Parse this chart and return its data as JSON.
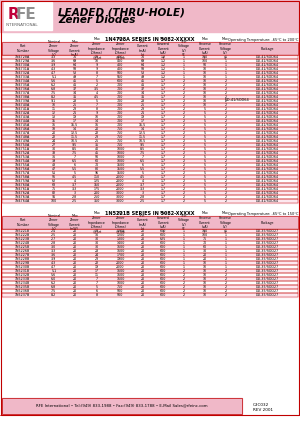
{
  "title_line1": "LEADED (THRU-HOLE)",
  "title_line2": "Zener Diodes",
  "bg_color": "#ffffff",
  "header_bg": "#f0b8c8",
  "table_header_bg": "#f0b8c8",
  "row_alt_bg": "#fde8ef",
  "row_normal_bg": "#ffffff",
  "border_color": "#c00000",
  "text_color": "#000000",
  "logo_r_color": "#c0003a",
  "logo_fe_color": "#909090",
  "footer_bg": "#f0b8c8",
  "footer_text": "RFE International • Tel:(949) 833-1988 • Fax:(949) 833-1788 • E-Mail Sales@rfeinc.com",
  "footer_code": "C3C032\nREV 2001",
  "watermark_text": "ЭЛЕКТРОННЫЙ  ПОРТАЛ",
  "table1_title": "1N4728A SERIES IN 5082-XXXXX",
  "table1_op_temp": "Operating Temperature: -65°C to 200°C",
  "table1_headers": [
    "Part Number",
    "Nominal\nZener\nVoltage\n(V)",
    "Max\nZener\nCurrent\n(mA)",
    "Max\nZener\nImpedance\n(Ohms)",
    "Max\nZener\nImpedance\n(Ohms)",
    "Test\nCurrent\n(mA)",
    "Max\nForward\nCurrent\n(mA)",
    "Test\nVoltage\n(V)",
    "Max\nReverse\nCurrent\n(uA)",
    "Max\nReverse\nVoltage\n(V)",
    "Package"
  ],
  "table1_rows": [
    [
      "1N4728A",
      "3.3",
      "76",
      "10",
      "400",
      "76",
      "1.2",
      "1",
      "100",
      "1",
      "DO-41/SOD64"
    ],
    [
      "1N4729A",
      "3.6",
      "69",
      "10",
      "400",
      "69",
      "1.2",
      "1",
      "100",
      "1",
      "DO-41/SOD64"
    ],
    [
      "1N4730A",
      "3.9",
      "64",
      "9",
      "400",
      "64",
      "1.2",
      "1",
      "50",
      "1",
      "DO-41/SOD64"
    ],
    [
      "1N4731A",
      "4.3",
      "58",
      "9",
      "400",
      "58",
      "1.2",
      "1",
      "10",
      "1",
      "DO-41/SOD64"
    ],
    [
      "1N4732A",
      "4.7",
      "53",
      "8",
      "500",
      "53",
      "1.2",
      "1",
      "10",
      "1",
      "DO-41/SOD64"
    ],
    [
      "1N4733A",
      "5.1",
      "49",
      "7",
      "550",
      "49",
      "1.2",
      "1",
      "10",
      "1",
      "DO-41/SOD64"
    ],
    [
      "1N4734A",
      "5.6",
      "45",
      "5",
      "600",
      "45",
      "1.7",
      "2",
      "10",
      "2",
      "DO-41/SOD64"
    ],
    [
      "1N4735A",
      "6.2",
      "41",
      "2",
      "700",
      "41",
      "1.7",
      "2",
      "10",
      "2",
      "DO-41/SOD64"
    ],
    [
      "1N4736A",
      "6.8",
      "37",
      "3.5",
      "700",
      "37",
      "1.7",
      "2",
      "10",
      "2",
      "DO-41/SOD64"
    ],
    [
      "1N4737A",
      "7.5",
      "34",
      "4",
      "700",
      "34",
      "1.7",
      "2",
      "10",
      "2",
      "DO-41/SOD64"
    ],
    [
      "1N4738A",
      "8.2",
      "31",
      "4.5",
      "700",
      "31",
      "1.7",
      "2",
      "10",
      "2",
      "DO-41/SOD64"
    ],
    [
      "1N4739A",
      "9.1",
      "28",
      "5",
      "700",
      "28",
      "1.7",
      "2",
      "10",
      "2",
      "DO-41/SOD64"
    ],
    [
      "1N4740A",
      "10",
      "25",
      "7",
      "700",
      "25",
      "1.7",
      "2",
      "10",
      "2",
      "DO-41/SOD64"
    ],
    [
      "1N4741A",
      "11",
      "23",
      "8",
      "700",
      "23",
      "1.7",
      "2",
      "5",
      "2",
      "DO-41/SOD64"
    ],
    [
      "1N4742A",
      "12",
      "21",
      "9",
      "700",
      "21",
      "1.7",
      "2",
      "5",
      "2",
      "DO-41/SOD64"
    ],
    [
      "1N4743A",
      "13",
      "19",
      "10",
      "700",
      "19",
      "1.7",
      "2",
      "5",
      "2",
      "DO-41/SOD64"
    ],
    [
      "1N4744A",
      "15",
      "17",
      "14",
      "700",
      "17",
      "1.7",
      "2",
      "5",
      "2",
      "DO-41/SOD64"
    ],
    [
      "1N4745A",
      "16",
      "15.5",
      "16",
      "700",
      "15.5",
      "1.7",
      "2",
      "5",
      "2",
      "DO-41/SOD64"
    ],
    [
      "1N4746A",
      "18",
      "14",
      "20",
      "750",
      "14",
      "1.7",
      "2",
      "5",
      "2",
      "DO-41/SOD64"
    ],
    [
      "1N4747A",
      "20",
      "12.5",
      "22",
      "750",
      "12.5",
      "1.7",
      "2",
      "5",
      "2",
      "DO-41/SOD64"
    ],
    [
      "1N4748A",
      "22",
      "11.5",
      "23",
      "750",
      "11.5",
      "1.7",
      "2",
      "5",
      "2",
      "DO-41/SOD64"
    ],
    [
      "1N4749A",
      "24",
      "10.5",
      "25",
      "750",
      "10.5",
      "1.7",
      "2",
      "5",
      "2",
      "DO-41/SOD64"
    ],
    [
      "1N4750A",
      "27",
      "9.5",
      "35",
      "750",
      "9.5",
      "1.7",
      "2",
      "5",
      "2",
      "DO-41/SOD64"
    ],
    [
      "1N4751A",
      "30",
      "8.5",
      "40",
      "1000",
      "8.5",
      "1.7",
      "2",
      "5",
      "2",
      "DO-41/SOD64"
    ],
    [
      "1N4752A",
      "33",
      "7.5",
      "45",
      "1000",
      "7.5",
      "1.7",
      "2",
      "5",
      "2",
      "DO-41/SOD64"
    ],
    [
      "1N4753A",
      "36",
      "7",
      "50",
      "1000",
      "7",
      "1.7",
      "2",
      "5",
      "2",
      "DO-41/SOD64"
    ],
    [
      "1N4754A",
      "39",
      "6.5",
      "60",
      "1000",
      "6.5",
      "1.7",
      "2",
      "5",
      "2",
      "DO-41/SOD64"
    ],
    [
      "1N4755A",
      "43",
      "6",
      "70",
      "1500",
      "6",
      "1.7",
      "2",
      "5",
      "2",
      "DO-41/SOD64"
    ],
    [
      "1N4756A",
      "47",
      "5.5",
      "80",
      "1500",
      "5.5",
      "1.7",
      "2",
      "5",
      "2",
      "DO-41/SOD64"
    ],
    [
      "1N4757A",
      "51",
      "5",
      "95",
      "1500",
      "5",
      "1.7",
      "2",
      "5",
      "2",
      "DO-41/SOD64"
    ],
    [
      "1N4758A",
      "56",
      "4.5",
      "110",
      "2000",
      "4.5",
      "1.7",
      "2",
      "5",
      "2",
      "DO-41/SOD64"
    ],
    [
      "1N4759A",
      "62",
      "4",
      "125",
      "2000",
      "4",
      "1.7",
      "2",
      "5",
      "2",
      "DO-41/SOD64"
    ],
    [
      "1N4760A",
      "68",
      "3.7",
      "150",
      "2000",
      "3.7",
      "1.7",
      "2",
      "5",
      "2",
      "DO-41/SOD64"
    ],
    [
      "1N4761A",
      "75",
      "3.3",
      "175",
      "2000",
      "3.3",
      "1.7",
      "2",
      "5",
      "2",
      "DO-41/SOD64"
    ],
    [
      "1N4762A",
      "82",
      "3",
      "200",
      "3000",
      "3",
      "1.7",
      "2",
      "5",
      "2",
      "DO-41/SOD64"
    ],
    [
      "1N4763A",
      "91",
      "2.8",
      "250",
      "3000",
      "2.8",
      "1.7",
      "2",
      "5",
      "2",
      "DO-41/SOD64"
    ],
    [
      "1N4764A",
      "100",
      "2.5",
      "350",
      "3000",
      "2.5",
      "1.7",
      "2",
      "5",
      "2",
      "DO-41/SOD64"
    ]
  ],
  "table2_title": "1N5221B SERIES IN 5082-XXXXX",
  "table2_op_temp": "Operating Temperature: -65°C to 150°C",
  "table2_rows": [
    [
      "1N5221B",
      "2.4",
      "20",
      "30",
      "1200",
      "20",
      "600",
      "1",
      "100",
      "1",
      "DO-35/SOD27"
    ],
    [
      "1N5222B",
      "2.5",
      "20",
      "30",
      "1200",
      "20",
      "600",
      "1",
      "100",
      "1",
      "DO-35/SOD27"
    ],
    [
      "1N5223B",
      "2.7",
      "20",
      "30",
      "1300",
      "20",
      "625",
      "1",
      "75",
      "1",
      "DO-35/SOD27"
    ],
    [
      "1N5224B",
      "2.8",
      "20",
      "30",
      "1400",
      "20",
      "600",
      "1",
      "70",
      "1",
      "DO-35/SOD27"
    ],
    [
      "1N5225B",
      "3.0",
      "20",
      "30",
      "1600",
      "20",
      "600",
      "1",
      "60",
      "1",
      "DO-35/SOD27"
    ],
    [
      "1N5226B",
      "3.3",
      "20",
      "28",
      "1600",
      "20",
      "600",
      "1",
      "30",
      "1",
      "DO-35/SOD27"
    ],
    [
      "1N5227B",
      "3.6",
      "20",
      "24",
      "1700",
      "20",
      "600",
      "1",
      "20",
      "1",
      "DO-35/SOD27"
    ],
    [
      "1N5228B",
      "3.9",
      "20",
      "23",
      "1900",
      "20",
      "600",
      "1",
      "20",
      "1",
      "DO-35/SOD27"
    ],
    [
      "1N5229B",
      "4.3",
      "20",
      "22",
      "2000",
      "20",
      "600",
      "1",
      "10",
      "1",
      "DO-35/SOD27"
    ],
    [
      "1N5230B",
      "4.7",
      "20",
      "19",
      "2000",
      "20",
      "600",
      "1",
      "10",
      "1",
      "DO-35/SOD27"
    ],
    [
      "1N5231B",
      "5.1",
      "20",
      "17",
      "1600",
      "20",
      "600",
      "2",
      "10",
      "2",
      "DO-35/SOD27"
    ],
    [
      "1N5232B",
      "5.6",
      "20",
      "11",
      "1600",
      "20",
      "600",
      "2",
      "10",
      "2",
      "DO-35/SOD27"
    ],
    [
      "1N5233B",
      "6.0",
      "20",
      "7",
      "1600",
      "20",
      "600",
      "2",
      "10",
      "2",
      "DO-35/SOD27"
    ],
    [
      "1N5234B",
      "6.2",
      "20",
      "7",
      "1000",
      "20",
      "600",
      "2",
      "10",
      "2",
      "DO-35/SOD27"
    ],
    [
      "1N5235B",
      "6.8",
      "20",
      "5",
      "750",
      "20",
      "600",
      "2",
      "10",
      "2",
      "DO-35/SOD27"
    ],
    [
      "1N5236B",
      "7.5",
      "20",
      "6",
      "500",
      "20",
      "600",
      "2",
      "10",
      "2",
      "DO-35/SOD27"
    ],
    [
      "1N5237B",
      "8.2",
      "20",
      "8",
      "500",
      "20",
      "600",
      "2",
      "10",
      "2",
      "DO-35/SOD27"
    ]
  ]
}
